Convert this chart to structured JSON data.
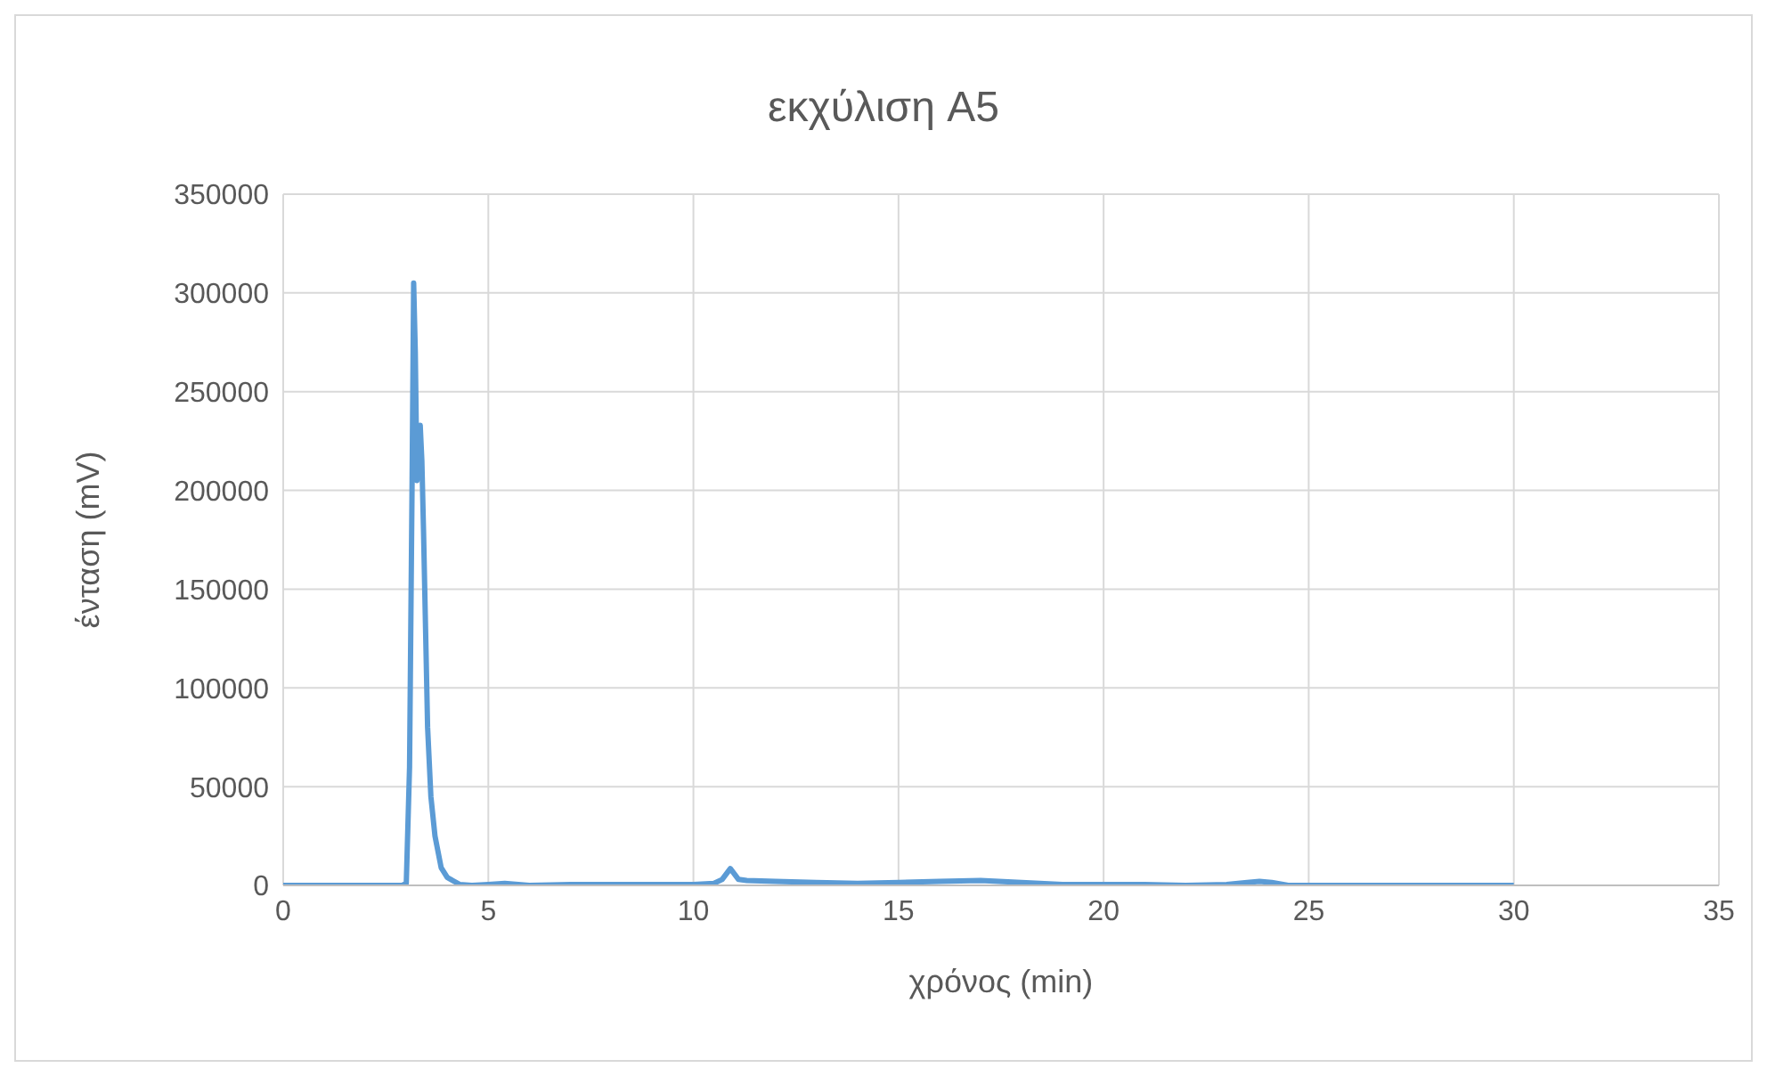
{
  "chart_data": {
    "type": "line",
    "title": "εκχύλιση A5",
    "xlabel": "χρόνος (min)",
    "ylabel": "ένταση (mV)",
    "series": [
      {
        "color": "#5b9bd5",
        "x": [
          0,
          1,
          2,
          2.9,
          3.0,
          3.08,
          3.14,
          3.18,
          3.22,
          3.26,
          3.3,
          3.34,
          3.38,
          3.42,
          3.47,
          3.52,
          3.6,
          3.7,
          3.85,
          4.0,
          4.3,
          4.6,
          5,
          5.4,
          6,
          7,
          8,
          9,
          10,
          10.5,
          10.7,
          10.9,
          11.1,
          11.3,
          12,
          13,
          14,
          15,
          16,
          17,
          18,
          19,
          20,
          21,
          22,
          23,
          23.5,
          23.8,
          24.1,
          24.5,
          25,
          26,
          27,
          28,
          29,
          30
        ],
        "values": [
          0,
          0,
          0,
          0,
          1000,
          60000,
          200000,
          305000,
          270000,
          205000,
          225000,
          233000,
          215000,
          180000,
          130000,
          80000,
          45000,
          25000,
          9000,
          4000,
          500,
          0,
          500,
          1000,
          0,
          500,
          500,
          500,
          500,
          1000,
          3000,
          8500,
          3000,
          2500,
          2000,
          1500,
          1000,
          1500,
          2000,
          2500,
          1500,
          500,
          500,
          500,
          0,
          500,
          1500,
          2000,
          1500,
          0,
          0,
          0,
          0,
          0,
          0,
          0
        ]
      }
    ],
    "xlim": [
      0,
      35
    ],
    "xticks": [
      0,
      5,
      10,
      15,
      20,
      25,
      30,
      35
    ],
    "ylim": [
      0,
      350000
    ],
    "yticks": [
      0,
      50000,
      100000,
      150000,
      200000,
      250000,
      300000,
      350000
    ],
    "grid": true,
    "legend": false,
    "marker": "none",
    "line_style": "solid"
  }
}
